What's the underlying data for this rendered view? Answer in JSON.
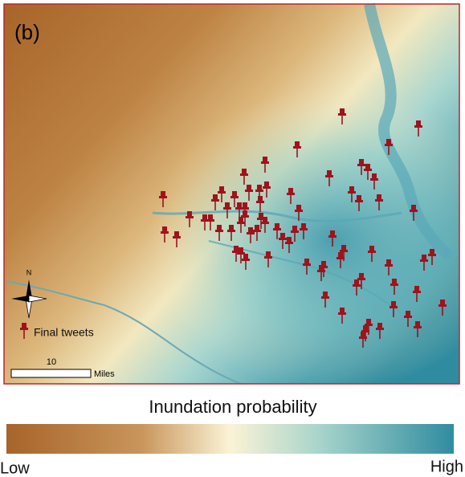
{
  "panel_label": "(b)",
  "north_label": "N",
  "legend": {
    "label": "Final tweets"
  },
  "scale_bar": {
    "distance": "10",
    "unit": "Miles"
  },
  "colorbar": {
    "title": "Inundation probability",
    "low_label": "Low",
    "high_label": "High"
  }
}
